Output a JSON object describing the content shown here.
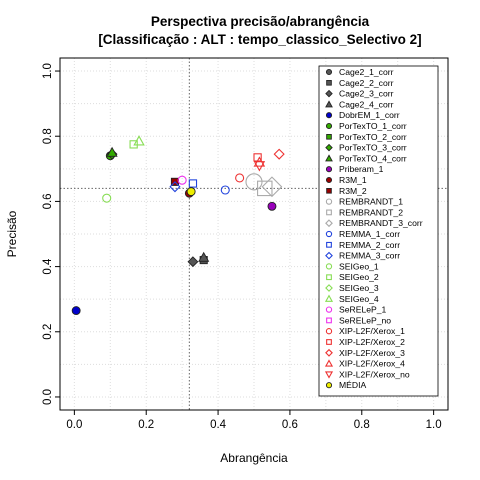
{
  "chart_data": {
    "type": "scatter",
    "title": "Perspectiva precisão/abrangência",
    "subtitle": "[Classificação : ALT : tempo_classico_Selectivo 2]",
    "xlabel": "Abrangência",
    "ylabel": "Precisão",
    "xlim": [
      -0.04,
      1.04
    ],
    "ylim": [
      -0.04,
      1.04
    ],
    "xticks": [
      "0.0",
      "0.2",
      "0.4",
      "0.6",
      "0.8",
      "1.0"
    ],
    "yticks": [
      "0.0",
      "0.2",
      "0.4",
      "0.6",
      "0.8",
      "1.0"
    ],
    "grid": true,
    "legend_position": "right",
    "reference_lines": {
      "x": 0.32,
      "y": 0.64
    },
    "series": [
      {
        "name": "Cage2_1_corr",
        "shape": "circle",
        "color": "#555555",
        "filled": true,
        "points": []
      },
      {
        "name": "Cage2_2_corr",
        "shape": "square",
        "color": "#555555",
        "filled": true,
        "points": [
          [
            0.36,
            0.42
          ]
        ]
      },
      {
        "name": "Cage2_3_corr",
        "shape": "diamond",
        "color": "#555555",
        "filled": true,
        "points": [
          [
            0.33,
            0.415
          ]
        ]
      },
      {
        "name": "Cage2_4_corr",
        "shape": "triangle",
        "color": "#555555",
        "filled": true,
        "points": [
          [
            0.36,
            0.428
          ]
        ]
      },
      {
        "name": "DobrEM_1_corr",
        "shape": "circle",
        "color": "#0000cc",
        "filled": true,
        "points": [
          [
            0.005,
            0.265
          ]
        ]
      },
      {
        "name": "PorTexTO_1_corr",
        "shape": "circle",
        "color": "#33aa00",
        "filled": true,
        "points": [
          [
            0.1,
            0.74
          ]
        ]
      },
      {
        "name": "PorTexTO_2_corr",
        "shape": "square",
        "color": "#33aa00",
        "filled": true,
        "points": []
      },
      {
        "name": "PorTexTO_3_corr",
        "shape": "diamond",
        "color": "#33aa00",
        "filled": true,
        "points": [
          [
            0.105,
            0.745
          ]
        ]
      },
      {
        "name": "PorTexTO_4_corr",
        "shape": "triangle",
        "color": "#33aa00",
        "filled": true,
        "points": [
          [
            0.105,
            0.75
          ]
        ]
      },
      {
        "name": "Priberam_1",
        "shape": "circle",
        "color": "#9900bb",
        "filled": true,
        "points": [
          [
            0.55,
            0.585
          ]
        ]
      },
      {
        "name": "R3M_1",
        "shape": "circle",
        "color": "#990000",
        "filled": true,
        "points": [
          [
            0.32,
            0.625
          ]
        ]
      },
      {
        "name": "R3M_2",
        "shape": "square",
        "color": "#990000",
        "filled": true,
        "points": [
          [
            0.28,
            0.66
          ]
        ]
      },
      {
        "name": "REMBRANDT_1",
        "shape": "circle",
        "color": "#aaaaaa",
        "filled": false,
        "points": [
          [
            0.5,
            0.66
          ]
        ]
      },
      {
        "name": "REMBRANDT_2",
        "shape": "square",
        "color": "#aaaaaa",
        "filled": false,
        "points": [
          [
            0.53,
            0.64
          ]
        ]
      },
      {
        "name": "REMBRANDT_3_corr",
        "shape": "diamond",
        "color": "#aaaaaa",
        "filled": false,
        "points": [
          [
            0.55,
            0.645
          ]
        ]
      },
      {
        "name": "REMMA_1_corr",
        "shape": "circle",
        "color": "#2244dd",
        "filled": false,
        "points": [
          [
            0.42,
            0.635
          ]
        ]
      },
      {
        "name": "REMMA_2_corr",
        "shape": "square",
        "color": "#2244dd",
        "filled": false,
        "points": [
          [
            0.33,
            0.655
          ]
        ]
      },
      {
        "name": "REMMA_3_corr",
        "shape": "diamond",
        "color": "#2244dd",
        "filled": false,
        "points": [
          [
            0.28,
            0.645
          ]
        ]
      },
      {
        "name": "SEIGeo_1",
        "shape": "circle",
        "color": "#88dd55",
        "filled": false,
        "points": [
          [
            0.09,
            0.61
          ]
        ]
      },
      {
        "name": "SEIGeo_2",
        "shape": "square",
        "color": "#88dd55",
        "filled": false,
        "points": [
          [
            0.165,
            0.775
          ]
        ]
      },
      {
        "name": "SEIGeo_3",
        "shape": "diamond",
        "color": "#88dd55",
        "filled": false,
        "points": []
      },
      {
        "name": "SEIGeo_4",
        "shape": "triangle",
        "color": "#88dd55",
        "filled": false,
        "points": [
          [
            0.18,
            0.785
          ]
        ]
      },
      {
        "name": "SeRELeP_1",
        "shape": "circle",
        "color": "#ee33ee",
        "filled": false,
        "points": [
          [
            0.3,
            0.665
          ]
        ]
      },
      {
        "name": "SeRELeP_no",
        "shape": "square",
        "color": "#ee33ee",
        "filled": false,
        "points": []
      },
      {
        "name": "XIP-L2F/Xerox_1",
        "shape": "circle",
        "color": "#ee3333",
        "filled": false,
        "points": [
          [
            0.46,
            0.672
          ]
        ]
      },
      {
        "name": "XIP-L2F/Xerox_2",
        "shape": "square",
        "color": "#ee3333",
        "filled": false,
        "points": [
          [
            0.51,
            0.735
          ]
        ]
      },
      {
        "name": "XIP-L2F/Xerox_3",
        "shape": "diamond",
        "color": "#ee3333",
        "filled": false,
        "points": [
          [
            0.57,
            0.745
          ]
        ]
      },
      {
        "name": "XIP-L2F/Xerox_4",
        "shape": "triangle",
        "color": "#ee3333",
        "filled": false,
        "points": [
          [
            0.515,
            0.72
          ]
        ]
      },
      {
        "name": "XIP-L2F/Xerox_no",
        "shape": "triangle-down",
        "color": "#ee3333",
        "filled": false,
        "points": [
          [
            0.515,
            0.71
          ]
        ]
      },
      {
        "name": "MÉDIA",
        "shape": "circle",
        "color": "#eeee00",
        "filled": true,
        "points": [
          [
            0.325,
            0.63
          ]
        ]
      }
    ]
  }
}
